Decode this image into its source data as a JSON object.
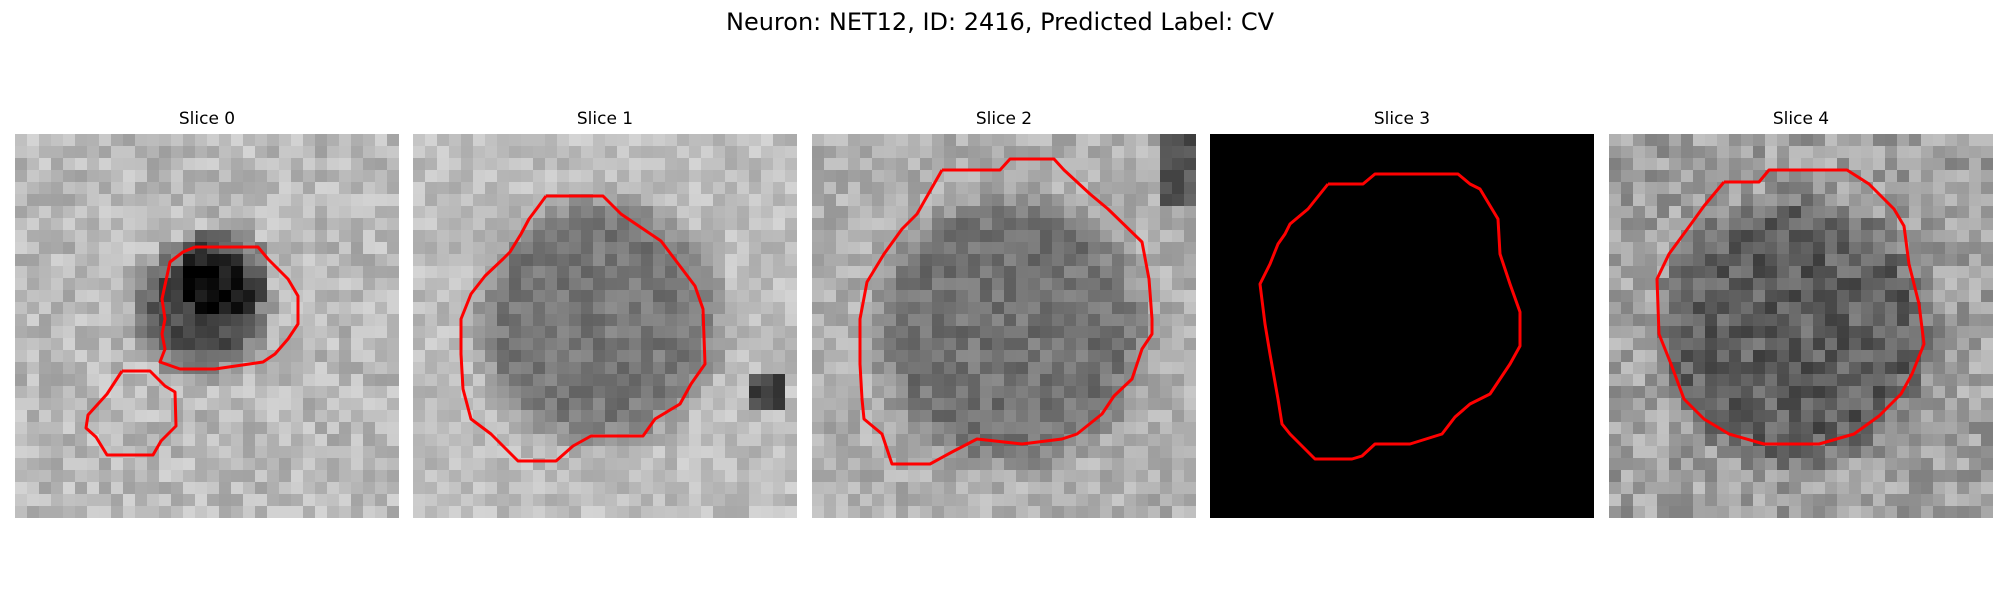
{
  "figure": {
    "title": "Neuron: NET12, ID: 2416, Predicted Label: CV",
    "contour_color": "#ff0000",
    "colormap": "gray"
  },
  "panels": [
    {
      "title": "Slice 0",
      "image_kind": "grayscale-microscopy"
    },
    {
      "title": "Slice 1",
      "image_kind": "grayscale-microscopy"
    },
    {
      "title": "Slice 2",
      "image_kind": "grayscale-microscopy"
    },
    {
      "title": "Slice 3",
      "image_kind": "black"
    },
    {
      "title": "Slice 4",
      "image_kind": "grayscale-microscopy"
    }
  ]
}
